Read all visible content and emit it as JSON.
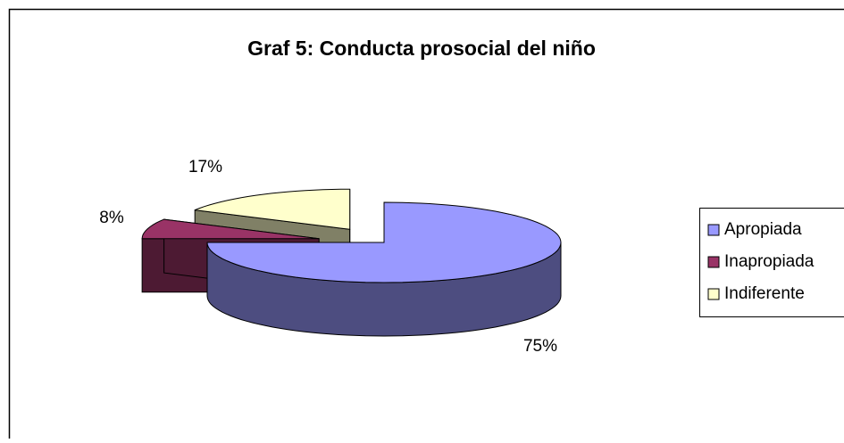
{
  "chart_data": {
    "type": "pie3d",
    "title": "Graf 5: Conducta prosocial del niño",
    "categories": [
      "Apropiada",
      "Inapropiada",
      "Indiferente"
    ],
    "values": [
      75,
      8,
      17
    ],
    "value_labels": [
      "75%",
      "8%",
      "17%"
    ],
    "colors": [
      "#9999ff",
      "#993366",
      "#ffffcc"
    ],
    "legend": "right"
  }
}
